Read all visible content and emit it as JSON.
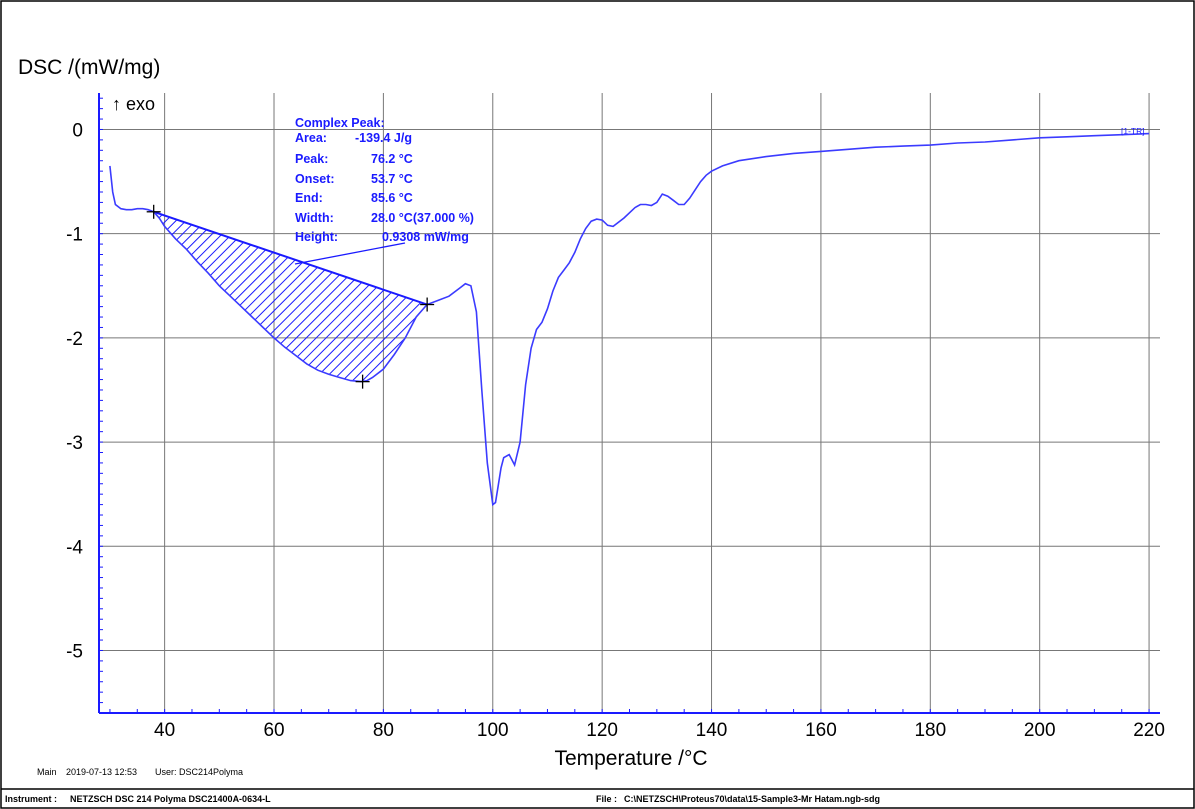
{
  "chart_data": {
    "type": "line",
    "ylabel": "DSC /(mW/mg)",
    "xlabel": "Temperature /°C",
    "exo_label": "↑ exo",
    "xlim": [
      28,
      222
    ],
    "ylim": [
      -5.6,
      0.35
    ],
    "x_ticks": [
      40,
      60,
      80,
      100,
      120,
      140,
      160,
      180,
      200,
      220
    ],
    "y_ticks": [
      0,
      -1,
      -2,
      -3,
      -4,
      -5
    ],
    "grid": true,
    "colors": {
      "series": "#3b3bff",
      "axis": "#1a1aff",
      "grid": "#777777",
      "annotation": "#1a1aff"
    },
    "series": [
      {
        "label": "[1-TR]",
        "x": [
          30,
          30.5,
          31,
          32,
          33,
          34,
          35,
          36,
          37,
          38,
          39,
          40,
          42,
          44,
          46,
          48,
          50,
          52,
          54,
          56,
          58,
          60,
          62,
          64,
          66,
          68,
          70,
          72,
          74,
          76,
          77,
          78,
          80,
          82,
          84,
          86,
          88,
          90,
          92,
          94,
          95,
          96,
          97,
          98,
          99,
          100,
          100.5,
          101,
          101.5,
          102,
          103,
          104,
          105,
          106,
          107,
          108,
          109,
          110,
          111,
          112,
          113,
          114,
          115,
          116,
          117,
          118,
          119,
          120,
          121,
          122,
          124,
          126,
          127,
          128,
          129,
          130,
          131,
          132,
          133,
          134,
          135,
          136,
          137,
          138,
          139,
          140,
          142,
          145,
          150,
          155,
          160,
          165,
          170,
          175,
          180,
          185,
          190,
          195,
          200,
          205,
          210,
          215,
          220
        ],
        "y": [
          -0.35,
          -0.6,
          -0.72,
          -0.76,
          -0.77,
          -0.77,
          -0.76,
          -0.76,
          -0.77,
          -0.79,
          -0.85,
          -0.93,
          -1.05,
          -1.15,
          -1.27,
          -1.38,
          -1.5,
          -1.6,
          -1.7,
          -1.8,
          -1.9,
          -2.0,
          -2.09,
          -2.17,
          -2.25,
          -2.31,
          -2.35,
          -2.38,
          -2.41,
          -2.42,
          -2.41,
          -2.38,
          -2.3,
          -2.16,
          -2.0,
          -1.8,
          -1.68,
          -1.64,
          -1.6,
          -1.52,
          -1.48,
          -1.5,
          -1.75,
          -2.5,
          -3.2,
          -3.6,
          -3.58,
          -3.42,
          -3.25,
          -3.15,
          -3.12,
          -3.22,
          -3.0,
          -2.45,
          -2.1,
          -1.92,
          -1.85,
          -1.72,
          -1.55,
          -1.42,
          -1.35,
          -1.28,
          -1.18,
          -1.05,
          -0.95,
          -0.88,
          -0.86,
          -0.87,
          -0.92,
          -0.93,
          -0.85,
          -0.75,
          -0.72,
          -0.72,
          -0.73,
          -0.7,
          -0.62,
          -0.64,
          -0.68,
          -0.72,
          -0.72,
          -0.66,
          -0.58,
          -0.5,
          -0.44,
          -0.4,
          -0.35,
          -0.3,
          -0.26,
          -0.23,
          -0.21,
          -0.19,
          -0.17,
          -0.16,
          -0.15,
          -0.13,
          -0.12,
          -0.1,
          -0.08,
          -0.07,
          -0.06,
          -0.05,
          -0.04
        ]
      }
    ],
    "integration": {
      "baseline": [
        [
          38.0,
          -0.79
        ],
        [
          88.0,
          -1.68
        ]
      ],
      "peak_marker": [
        76.2,
        -2.42
      ],
      "start_marker": [
        38.0,
        -0.79
      ],
      "end_marker": [
        88.0,
        -1.68
      ]
    },
    "annotation": {
      "title": "Complex Peak:",
      "rows": [
        {
          "key": "Area:",
          "value": "-139.4 J/g"
        },
        {
          "key": "Peak:",
          "value": "76.2 °C"
        },
        {
          "key": "Onset:",
          "value": "53.7 °C"
        },
        {
          "key": "End:",
          "value": "85.6 °C"
        },
        {
          "key": "Width:",
          "value": "28.0 °C(37.000 %)"
        },
        {
          "key": "Height:",
          "value": "0.9308 mW/mg"
        }
      ]
    }
  },
  "footer": {
    "main_label": "Main",
    "datetime": "2019-07-13 12:53",
    "user_label": "User:",
    "user": "DSC214Polyma",
    "instrument_label": "Instrument :",
    "instrument": "NETZSCH DSC 214 Polyma DSC21400A-0634-L",
    "file_label": "File :",
    "file": "C:\\NETZSCH\\Proteus70\\data\\15-Sample3-Mr Hatam.ngb-sdg"
  }
}
